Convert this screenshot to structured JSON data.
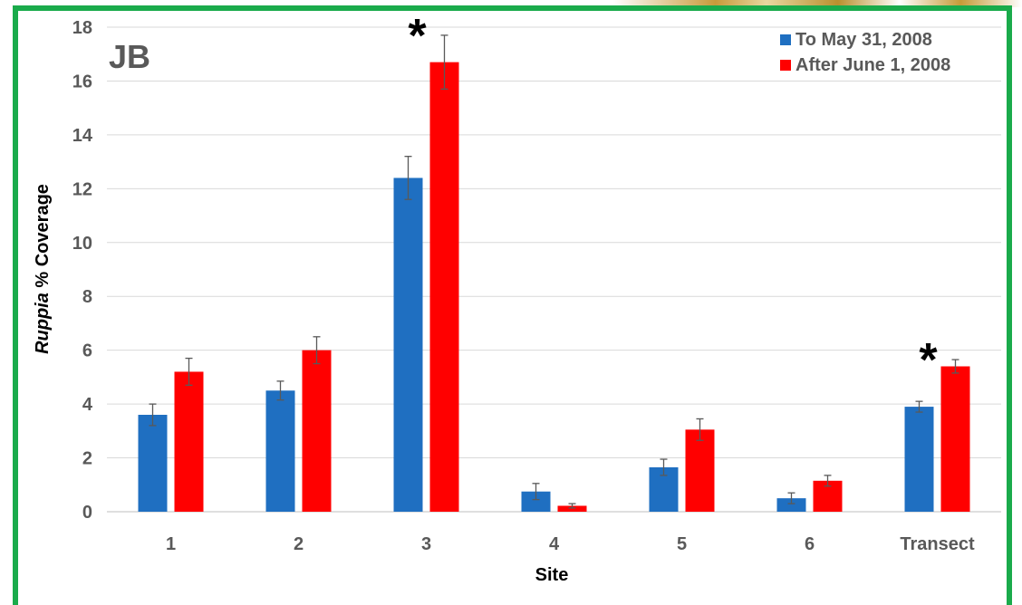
{
  "chart_data": {
    "type": "bar",
    "panel_label": "JB",
    "xlabel": "Site",
    "ylabel_italic": "Ruppia",
    "ylabel_rest": " % Coverage",
    "ylim": [
      0,
      18
    ],
    "yticks": [
      0,
      2,
      4,
      6,
      8,
      10,
      12,
      14,
      16,
      18
    ],
    "grid": "horizontal",
    "legend_position": "top-right",
    "categories": [
      "1",
      "2",
      "3",
      "4",
      "5",
      "6",
      "Transect"
    ],
    "series": [
      {
        "name": "To May 31, 2008",
        "color": "#1f6fc1",
        "values": [
          3.6,
          4.5,
          12.4,
          0.75,
          1.65,
          0.5,
          3.9
        ],
        "errors": [
          0.4,
          0.35,
          0.8,
          0.3,
          0.3,
          0.2,
          0.2
        ]
      },
      {
        "name": "After June 1, 2008",
        "color": "#ff0000",
        "values": [
          5.2,
          6.0,
          16.7,
          0.22,
          3.05,
          1.15,
          5.4
        ],
        "errors": [
          0.5,
          0.5,
          1.0,
          0.08,
          0.4,
          0.2,
          0.25
        ]
      }
    ],
    "significance_markers": [
      {
        "category": "3",
        "label": "*"
      },
      {
        "category": "Transect",
        "label": "*"
      }
    ]
  }
}
